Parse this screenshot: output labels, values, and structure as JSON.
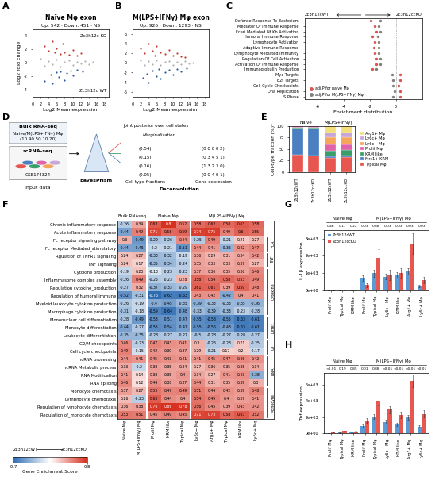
{
  "chart_data": [
    {
      "panel": "A",
      "type": "scatter",
      "title": "Naïve Mφ exon",
      "subtitle": "Up: 542 · Down: 451 · NS",
      "x_label": "Log2 Mean expression",
      "y_label": "Log2 fold change",
      "xlim": [
        0,
        19
      ],
      "xticks": [
        0,
        2,
        4,
        6,
        8,
        10,
        12,
        14,
        16,
        18
      ],
      "ylim": [
        -5,
        5
      ],
      "yticks": [
        -4,
        -2,
        0,
        2,
        4
      ],
      "annotations": [
        "Zc3h12c KO",
        "Zc3h12c WT"
      ],
      "series": [
        {
          "color": "#c0392b",
          "x": [
            3,
            4,
            5,
            5.5,
            6,
            7,
            7.5,
            8,
            9,
            10,
            11,
            12
          ],
          "values": [
            2.5,
            1.8,
            3.2,
            1.5,
            2.2,
            1.3,
            2.8,
            1.6,
            1.2,
            1.9,
            1.1,
            1.4
          ]
        },
        {
          "color": "#2c5aa0",
          "x": [
            3,
            4.5,
            5,
            6,
            6.5,
            7,
            8,
            8.5,
            9.5,
            10,
            11,
            12.5
          ],
          "values": [
            -2.6,
            -1.7,
            -3.0,
            -1.4,
            -2.1,
            -1.2,
            -2.5,
            -1.5,
            -1.1,
            -1.8,
            -1.0,
            -1.3
          ]
        },
        {
          "color": "#b0b0b0",
          "x": [
            2,
            3,
            4,
            5,
            6,
            7,
            8,
            9,
            10,
            11,
            12,
            13,
            14,
            15
          ],
          "values": [
            0.6,
            -0.4,
            0.3,
            -0.2,
            0.5,
            -0.6,
            0.1,
            0.4,
            -0.3,
            0.2,
            -0.1,
            0.3,
            -0.2,
            0.1
          ]
        }
      ]
    },
    {
      "panel": "B",
      "type": "scatter",
      "title": "M(LPS+IFNγ) Mφ exon",
      "subtitle": "Up: 926 · Down: 1293 · NS",
      "x_label": "Log2 Mean expression",
      "xlim": [
        0,
        19
      ],
      "xticks": [
        0,
        2,
        4,
        6,
        8,
        10,
        12,
        14,
        16,
        18
      ],
      "ylim": [
        -7,
        7
      ],
      "yticks": [
        -6,
        -4,
        -2,
        0,
        2,
        4,
        6
      ],
      "series": [
        {
          "color": "#c0392b",
          "x": [
            2,
            3,
            4,
            5,
            5.5,
            6,
            7,
            8,
            9,
            10,
            11,
            12,
            13
          ],
          "values": [
            3,
            2,
            4,
            2.5,
            1.6,
            3.5,
            2.2,
            1.8,
            2.7,
            1.5,
            2.0,
            1.3,
            1.2
          ]
        },
        {
          "color": "#2c5aa0",
          "x": [
            2.5,
            3.5,
            4,
            5,
            6,
            6.5,
            7,
            8,
            9,
            10,
            11,
            12,
            13.5
          ],
          "values": [
            -3,
            -2.2,
            -4,
            -1.6,
            -2.8,
            -1.3,
            -3.3,
            -2,
            -1.5,
            -2.4,
            -1.2,
            -1.8,
            -1.1
          ]
        },
        {
          "color": "#b0b0b0",
          "x": [
            2,
            3,
            4,
            5,
            6,
            7,
            8,
            9,
            10,
            11,
            12,
            13,
            14,
            15
          ],
          "values": [
            0.5,
            -0.5,
            0.4,
            -0.3,
            0.6,
            -0.5,
            0.2,
            0.3,
            -0.4,
            0.2,
            -0.2,
            0.3,
            -0.1,
            0.1
          ]
        }
      ]
    },
    {
      "panel": "C",
      "type": "dot",
      "x_label": "Enrichment distribution",
      "arrow_labels": [
        "Zc3h12cWT",
        "Zc3h12ccKO"
      ],
      "xlim": [
        -7,
        2
      ],
      "xticks": [
        -6,
        -4,
        -2,
        0
      ],
      "legend": "lower left",
      "categories": [
        "Defense Response To Bacterium",
        "Mediator Of Immune Response",
        "Fceri Mediated Nf Kb Activation",
        "Humoral Immune Response",
        "Lymphocyte Activation",
        "Adaptive Immune Response",
        "Lymphocyte Mediated Immunity",
        "Regulation Of Cell Activation",
        "Activation Of Immune Response",
        "Immunoglobulin Production",
        "Myc Targets",
        "E2f Targets",
        "Cell Cycle Checkpoints",
        "Dna Replication",
        "S Phase"
      ],
      "series": [
        {
          "name": "adj.P for naive Mφ",
          "color": "#d9534f",
          "values": [
            -1.9,
            -1.6,
            -1.5,
            -1.8,
            -1.6,
            -1.7,
            -1.6,
            -1.5,
            -1.5,
            -1.8,
            0.3,
            0.3,
            0.2,
            0.3,
            0.3
          ]
        },
        {
          "name": "adj.P for M(LPS+IFNγ) Mφ",
          "color": "#7f7f7f",
          "values": [
            -1.2,
            -1.3,
            -1.2,
            -1.4,
            -1.3,
            -1.3,
            -1.3,
            -1.2,
            -1.2,
            -1.5,
            -0.3,
            -0.2,
            -0.2,
            -0.1,
            -0.2
          ]
        }
      ]
    },
    {
      "panel": "E",
      "type": "bar",
      "stacked": true,
      "y_label": "Cell-type fraction (%)*",
      "categories": [
        "Zc3h12cWT",
        "Zc3h12ccKO",
        "Zc3h12cWT",
        "Zc3h12ccKO"
      ],
      "groups": [
        {
          "label": "Naive",
          "span": 2
        },
        {
          "label": "M(LPS+IFNγ)",
          "span": 2
        }
      ],
      "ylim": [
        0,
        100
      ],
      "yticks": [
        0,
        25,
        50,
        75,
        100
      ],
      "legend": "center left",
      "series": [
        {
          "name": "Typical Mφ",
          "color": "#e8574f",
          "values": [
            37,
            35,
            31,
            32
          ]
        },
        {
          "name": "Mrc1+ KRM",
          "color": "#4a7fc1",
          "values": [
            57,
            59,
            3,
            3
          ]
        },
        {
          "name": "KRM like",
          "color": "#3a9e6a",
          "values": [
            2,
            2,
            12,
            13
          ]
        },
        {
          "name": "Prolif Mφ",
          "color": "#e062a8",
          "values": [
            1,
            1,
            14,
            12
          ]
        },
        {
          "name": "Ly6c− Mφ",
          "color": "#f5a65b",
          "values": [
            1,
            1,
            16,
            15
          ]
        },
        {
          "name": "Ly6c+ Mφ",
          "color": "#c9a6d9",
          "values": [
            1,
            1,
            10,
            11
          ]
        },
        {
          "name": "Arg1+ Mφ",
          "color": "#f2df7a",
          "values": [
            1,
            1,
            14,
            14
          ]
        }
      ]
    },
    {
      "panel": "F",
      "type": "heatmap",
      "data_labels": true,
      "columns": [
        "Naive Mφ",
        "M(LPS+IFNγ) Mφ",
        "Prolif Mφ",
        "KRM like",
        "Typical Mφ",
        "Ly6c− Mφ",
        "Arg1+ Mφ",
        "Typical Mφ",
        "KRM like",
        "Ly6c+ Mφ"
      ],
      "column_groups": [
        {
          "label": "Bulk RNAseq",
          "span": 2
        },
        {
          "label": "Naive Mφ",
          "span": 3
        },
        {
          "label": "M(LPS+IFNγ) Mφ",
          "span": 5
        }
      ],
      "rows": [
        "Chronic inflammatory response",
        "Acute inflammatory response",
        "Fc receptor signaling pathway",
        "Fc receptor Mediated_stimulatory",
        "Rgulation of TNFR1 signaling",
        "TNF signaling",
        "Cytokine production",
        "Inflammasome complex assembly",
        "Regulation cytokine_production",
        "Regulation of humoral immune",
        "Myeloid leukocyte cytokine production",
        "Macrophage cytokine production",
        "Mononuclear cell differentiation",
        "Monocyte differentiation",
        "Leukocyte differentiation",
        "G2/M checkpoints",
        "Cell cycle checkpoints",
        "ncRNA processing",
        "ncRNA Metabolic process",
        "RNA Modification",
        "RNA splicing",
        "Monocyte chemotaxis",
        "Lymphocyte chemotaxis",
        "Regulation of lymphocyte chemotaxis",
        "Regulation of_monocyte chemotaxis"
      ],
      "row_groups": [
        {
          "label": "FCR",
          "first": 2,
          "last": 3
        },
        {
          "label": "TNF",
          "first": 4,
          "last": 5
        },
        {
          "label": "Cytokine",
          "first": 6,
          "last": 11
        },
        {
          "label": "Differ.",
          "first": 12,
          "last": 14
        },
        {
          "label": "Ce",
          "first": 15,
          "last": 16
        },
        {
          "label": "RNA",
          "first": 17,
          "last": 20
        },
        {
          "label": "Monocyte",
          "first": 21,
          "last": 24
        }
      ],
      "cells": [
        [
          -0.26,
          0.34,
          0.63,
          0.8,
          0.52,
          0.58,
          0.62,
          0.58,
          0.63,
          0.58
        ],
        [
          -0.44,
          0.49,
          0.71,
          0.58,
          0.59,
          0.74,
          0.75,
          0.49,
          0.6,
          0.55
        ],
        [
          0.3,
          -0.49,
          -0.29,
          -0.26,
          0.44,
          -0.25,
          0.49,
          -0.21,
          0.21,
          0.27
        ],
        [
          -0.44,
          -0.45,
          -0.2,
          -0.21,
          -0.51,
          0.44,
          0.41,
          -0.36,
          0.42,
          0.47
        ],
        [
          0.24,
          0.27,
          -0.33,
          -0.32,
          -0.19,
          0.36,
          0.29,
          0.31,
          0.34,
          0.42
        ],
        [
          0.24,
          0.17,
          -0.35,
          -0.34,
          -0.24,
          0.35,
          0.33,
          0.33,
          0.37,
          0.27
        ],
        [
          -0.19,
          0.23,
          -0.13,
          -0.23,
          -0.23,
          0.37,
          0.36,
          0.35,
          0.36,
          0.46
        ],
        [
          -0.26,
          0.49,
          -0.25,
          -0.23,
          0.28,
          0.58,
          0.54,
          0.58,
          0.53,
          0.49
        ],
        [
          -0.27,
          0.32,
          -0.37,
          -0.33,
          -0.29,
          0.61,
          0.61,
          0.39,
          0.59,
          0.48
        ],
        [
          -0.52,
          -0.31,
          -0.76,
          -0.62,
          -0.63,
          0.43,
          0.42,
          -0.42,
          0.4,
          0.41
        ],
        [
          -0.26,
          -0.19,
          -0.4,
          -0.45,
          -0.35,
          -0.39,
          -0.33,
          -0.33,
          -0.35,
          -0.36
        ],
        [
          -0.31,
          -0.18,
          -0.59,
          -0.64,
          -0.48,
          -0.33,
          -0.39,
          -0.33,
          -0.23,
          -0.28
        ],
        [
          -0.28,
          -0.49,
          -0.53,
          -0.51,
          -0.47,
          -0.55,
          -0.58,
          -0.55,
          -0.63,
          -0.61
        ],
        [
          -0.44,
          -0.27,
          -0.55,
          -0.54,
          -0.47,
          -0.55,
          -0.56,
          -0.48,
          -0.63,
          -0.61
        ],
        [
          -0.35,
          -0.35,
          -0.28,
          -0.27,
          -0.27,
          -0.3,
          -0.28,
          -0.27,
          -0.28,
          -0.27
        ],
        [
          0.46,
          -0.23,
          0.47,
          0.43,
          0.41,
          0.3,
          -0.26,
          -0.23,
          0.21,
          -0.25
        ],
        [
          0.49,
          -0.15,
          0.42,
          0.39,
          0.37,
          0.29,
          -0.21,
          0.17,
          0.2,
          -0.17
        ],
        [
          0.44,
          0.41,
          0.45,
          0.43,
          0.41,
          0.41,
          0.45,
          0.47,
          0.46,
          0.42
        ],
        [
          0.33,
          -0.2,
          0.38,
          0.35,
          0.34,
          0.27,
          0.36,
          0.35,
          0.38,
          0.34
        ],
        [
          0.41,
          0.14,
          0.38,
          0.35,
          0.4,
          0.34,
          0.27,
          0.41,
          0.43,
          -0.38
        ],
        [
          0.46,
          0.12,
          0.44,
          0.38,
          0.37,
          0.44,
          0.31,
          0.35,
          0.39,
          0.3
        ],
        [
          0.37,
          0.27,
          0.53,
          0.47,
          0.49,
          0.51,
          0.44,
          0.42,
          0.39,
          0.48
        ],
        [
          0.26,
          -0.23,
          0.63,
          0.44,
          0.4,
          0.54,
          0.49,
          0.4,
          0.37,
          0.41
        ],
        [
          0.36,
          0.38,
          0.76,
          0.86,
          0.78,
          0.56,
          0.45,
          0.39,
          0.43,
          0.42
        ],
        [
          0.53,
          0.51,
          0.45,
          0.49,
          0.45,
          0.71,
          0.73,
          0.58,
          0.63,
          0.52
        ]
      ],
      "color_range": [
        -0.7,
        0.8
      ],
      "colorbar_ticks": [
        -0.7,
        0.8
      ],
      "colorbar_label": "Gene Enrichment Score",
      "arrow_labels": [
        "Zc3h12cWT",
        "Zc3h12ccKO"
      ]
    },
    {
      "panel": "G",
      "type": "bar",
      "y_label": "Il-1β expression",
      "legend": "upper left",
      "categories": [
        "Prolif Mφ",
        "Typical Mφ",
        "KRM like",
        "Prolif Mφ",
        "Typical Mφ",
        "Ly6c− Mφ",
        "KRM like",
        "Arg1+ Mφ",
        "Ly6c+ Mφ"
      ],
      "groups": [
        {
          "label": "Naive Mφ",
          "span": 3
        },
        {
          "label": "M(LPS+IFNγ) Mφ",
          "span": 6
        }
      ],
      "p_values": [
        "0.46",
        "0.17",
        "0.22",
        "0.03",
        "0.38",
        "0.03",
        "0.03",
        "0.03",
        "0.03"
      ],
      "ylim": [
        0,
        3500
      ],
      "yticks": [
        {
          "value": 0,
          "label": "0e+00"
        },
        {
          "value": 1000,
          "label": "1e+03"
        },
        {
          "value": 2000,
          "label": "2e+03"
        },
        {
          "value": 3000,
          "label": "3e+03"
        }
      ],
      "series": [
        {
          "name": "Zc3h12cWT",
          "color": "#5b9bd5",
          "values": [
            5,
            10,
            8,
            700,
            1000,
            800,
            900,
            1100,
            250
          ],
          "errors": [
            5,
            10,
            8,
            150,
            200,
            150,
            150,
            200,
            80
          ]
        },
        {
          "name": "Zc3h12ccKO",
          "color": "#e8574f",
          "values": [
            10,
            40,
            30,
            300,
            1900,
            900,
            1000,
            2700,
            600
          ],
          "errors": [
            10,
            20,
            15,
            100,
            500,
            300,
            300,
            600,
            200
          ]
        }
      ]
    },
    {
      "panel": "H",
      "type": "bar",
      "y_label": "Tnf expression",
      "categories": [
        "Prolif Mφ",
        "Typical Mφ",
        "KRM like",
        "Prolif Mφ",
        "Typical Mφ",
        "Ly6c− Mφ",
        "KRM like",
        "Arg1+ Mφ",
        "Ly6c+ Mφ"
      ],
      "groups": [
        {
          "label": "Naive Mφ",
          "span": 3
        },
        {
          "label": "M(LPS+IFNγ) Mφ",
          "span": 6
        }
      ],
      "p_values": [
        "<0.01",
        "0.19",
        "0.85",
        "0.01",
        "0.38",
        "<0.01",
        "<0.01",
        "<0.01",
        "<0.01"
      ],
      "ylim": [
        0,
        7500
      ],
      "yticks": [
        {
          "value": 0,
          "label": "0e+00"
        },
        {
          "value": 2000,
          "label": "2e+03"
        },
        {
          "value": 4000,
          "label": "4e+03"
        },
        {
          "value": 6000,
          "label": "6e+03"
        }
      ],
      "series": [
        {
          "name": "Zc3h12cWT",
          "color": "#5b9bd5",
          "values": [
            30,
            60,
            50,
            900,
            2100,
            1400,
            1100,
            2000,
            800
          ],
          "errors": [
            10,
            20,
            20,
            200,
            300,
            250,
            200,
            300,
            150
          ]
        },
        {
          "name": "Zc3h12ccKO",
          "color": "#e8574f",
          "values": [
            150,
            250,
            200,
            1600,
            3900,
            2900,
            2300,
            6500,
            2400
          ],
          "errors": [
            40,
            60,
            60,
            300,
            500,
            400,
            400,
            800,
            400
          ]
        }
      ]
    }
  ],
  "diagram": {
    "panel": "D",
    "bulk": [
      "Bulk RNA-seq",
      "Naive/M(LPS+IFNγ) Mφ",
      "(10 40 50 10 20)"
    ],
    "single_cell": [
      "scRNA-seq",
      "GSE174324"
    ],
    "input_label": "Input data",
    "method": "BayesPrism",
    "steps": [
      "Joint posterior over cell states",
      "Marginalization",
      "Deconvolution"
    ],
    "fractions_label": "Cell type fractions",
    "fractions": [
      "(0.54)",
      "(0.15)",
      "(0.16)",
      "(0.05)"
    ],
    "expression_label": "Gene expression",
    "expression": [
      "(0 0 0 0 2)",
      "(0 3 4 5 1)",
      "(1 3 2 3 0)",
      "(0 0 4 0 1)"
    ]
  }
}
